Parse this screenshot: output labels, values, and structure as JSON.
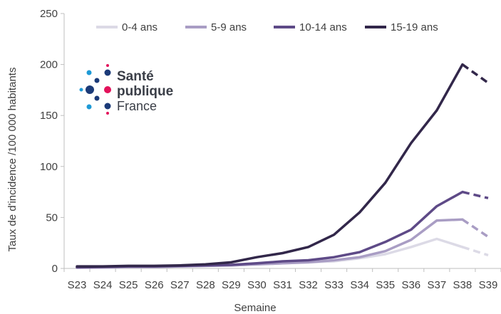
{
  "chart_data": {
    "type": "line",
    "ylabel": "Taux de d'incidence /100 000 habitants",
    "xlabel": "Semaine",
    "ylim": [
      0,
      250
    ],
    "yticks": [
      0,
      50,
      100,
      150,
      200,
      250
    ],
    "grid": false,
    "legend_position": "top",
    "categories": [
      "S23",
      "S24",
      "S25",
      "S26",
      "S27",
      "S28",
      "S29",
      "S30",
      "S31",
      "S32",
      "S33",
      "S34",
      "S35",
      "S36",
      "S37",
      "S38",
      "S39"
    ],
    "projected_from_index": 15,
    "series": [
      {
        "name": "0-4 ans",
        "color": "#dcdae6",
        "values": [
          1,
          1,
          1.5,
          1.5,
          2,
          2.5,
          3,
          4,
          5,
          6,
          7,
          10,
          14,
          21,
          29,
          21,
          13
        ]
      },
      {
        "name": "5-9 ans",
        "color": "#a99dc4",
        "values": [
          1,
          1,
          1.5,
          1.5,
          2,
          2.5,
          3,
          4,
          5,
          6,
          8,
          11,
          17,
          28,
          47,
          48,
          31
        ]
      },
      {
        "name": "10-14 ans",
        "color": "#5e4a87",
        "values": [
          1,
          1.5,
          2,
          2,
          2.5,
          3,
          3.5,
          5,
          7,
          8,
          11,
          16,
          26,
          38,
          61,
          75,
          69
        ]
      },
      {
        "name": "15-19 ans",
        "color": "#32274a",
        "values": [
          2,
          2,
          2.5,
          2.5,
          3,
          4,
          6,
          11,
          15,
          21,
          33,
          55,
          84,
          123,
          155,
          200,
          182
        ]
      }
    ]
  },
  "logo": {
    "line1": "Santé",
    "line2": "publique",
    "line3": "France",
    "dots": {
      "navy": "#1b3a78",
      "blue": "#1e9ad6",
      "pink": "#e3125b"
    }
  }
}
